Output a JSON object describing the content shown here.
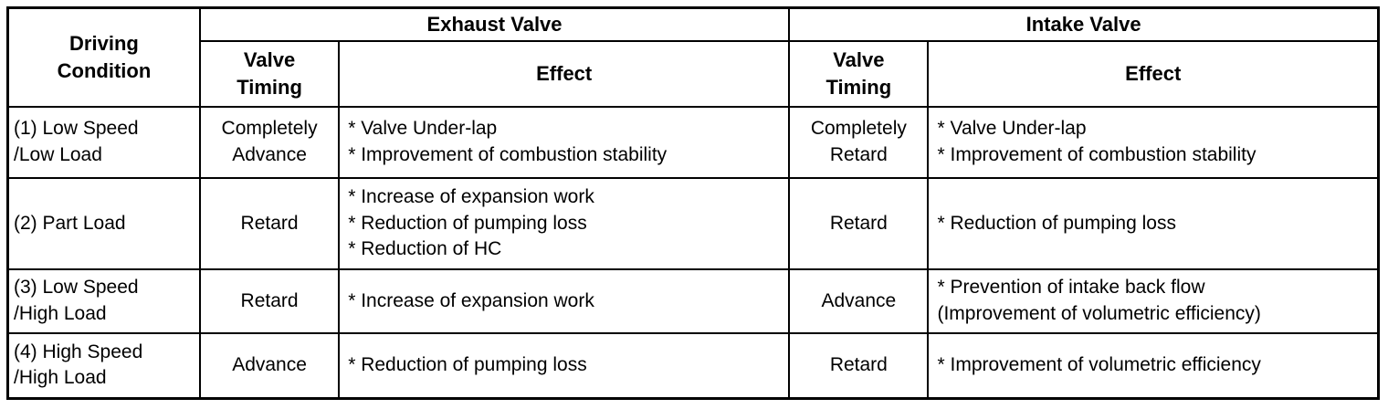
{
  "table": {
    "header": {
      "driving_condition": "Driving\nCondition",
      "exhaust_valve": "Exhaust Valve",
      "intake_valve": "Intake Valve",
      "exhaust_valve_timing": "Valve\nTiming",
      "exhaust_effect": "Effect",
      "intake_valve_timing": "Valve\nTiming",
      "intake_effect": "Effect"
    },
    "rows": [
      {
        "condition": "(1) Low Speed\n/Low Load",
        "exhaust_timing": "Completely\nAdvance",
        "exhaust_effect": "* Valve Under-lap\n* Improvement of combustion stability",
        "intake_timing": "Completely\nRetard",
        "intake_effect": "* Valve Under-lap\n* Improvement of combustion stability"
      },
      {
        "condition": "(2) Part Load",
        "exhaust_timing": "Retard",
        "exhaust_effect": "* Increase of expansion work\n* Reduction of pumping loss\n* Reduction of HC",
        "intake_timing": "Retard",
        "intake_effect": "* Reduction of pumping loss"
      },
      {
        "condition": "(3) Low Speed\n/High Load",
        "exhaust_timing": "Retard",
        "exhaust_effect": "* Increase of expansion work",
        "intake_timing": "Advance",
        "intake_effect": "* Prevention of intake back flow\n(Improvement of volumetric efficiency)"
      },
      {
        "condition": "(4) High Speed\n/High Load",
        "exhaust_timing": "Advance",
        "exhaust_effect": "* Reduction of pumping loss",
        "intake_timing": "Retard",
        "intake_effect": "* Improvement of volumetric efficiency"
      }
    ]
  }
}
